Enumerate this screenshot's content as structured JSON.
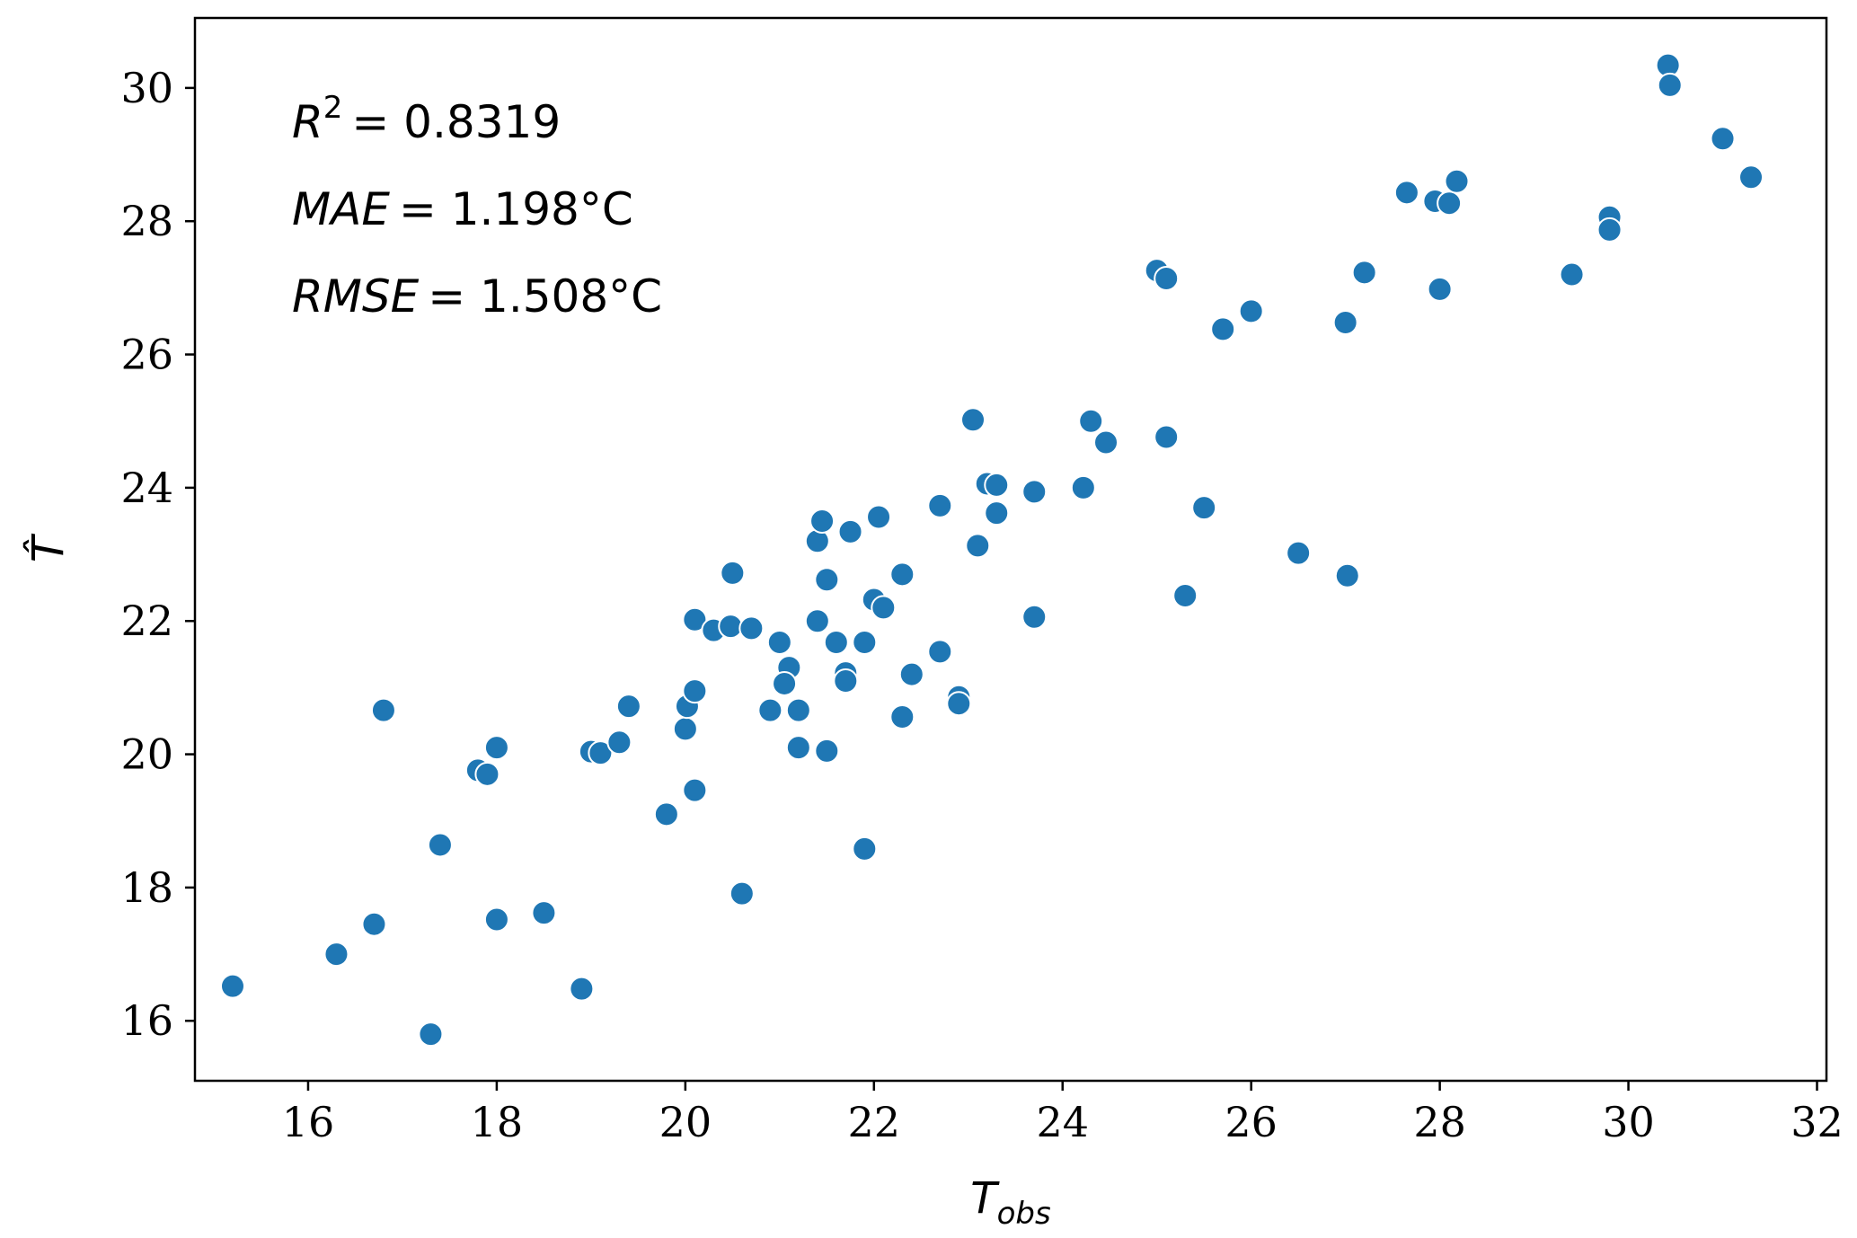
{
  "chart_data": {
    "type": "scatter",
    "xlabel": {
      "base": "T",
      "sub": "obs"
    },
    "ylabel": "T̂",
    "xlim": [
      14.8,
      32.1
    ],
    "ylim": [
      15.1,
      31.05
    ],
    "xticks": [
      16,
      18,
      20,
      22,
      24,
      26,
      28,
      30,
      32
    ],
    "yticks": [
      16,
      18,
      20,
      22,
      24,
      26,
      28,
      30
    ],
    "marker_color": "#1f77b4",
    "annotations": [
      {
        "label": "R",
        "sup": "2",
        "value": "= 0.8319"
      },
      {
        "label": "MAE",
        "value": "= 1.198°C"
      },
      {
        "label": "RMSE",
        "value": "= 1.508°C"
      }
    ],
    "points": [
      {
        "x": 15.2,
        "y": 16.52
      },
      {
        "x": 16.3,
        "y": 17.0
      },
      {
        "x": 16.7,
        "y": 17.45
      },
      {
        "x": 16.8,
        "y": 20.66
      },
      {
        "x": 17.3,
        "y": 15.8
      },
      {
        "x": 17.4,
        "y": 18.64
      },
      {
        "x": 17.8,
        "y": 19.76
      },
      {
        "x": 17.9,
        "y": 19.7
      },
      {
        "x": 18.0,
        "y": 20.1
      },
      {
        "x": 18.0,
        "y": 17.52
      },
      {
        "x": 18.5,
        "y": 17.62
      },
      {
        "x": 18.9,
        "y": 16.48
      },
      {
        "x": 19.0,
        "y": 20.04
      },
      {
        "x": 19.1,
        "y": 20.02
      },
      {
        "x": 19.3,
        "y": 20.18
      },
      {
        "x": 19.4,
        "y": 20.72
      },
      {
        "x": 19.8,
        "y": 19.1
      },
      {
        "x": 20.0,
        "y": 20.38
      },
      {
        "x": 20.02,
        "y": 20.72
      },
      {
        "x": 20.1,
        "y": 20.95
      },
      {
        "x": 20.1,
        "y": 19.46
      },
      {
        "x": 20.1,
        "y": 22.02
      },
      {
        "x": 20.3,
        "y": 21.86
      },
      {
        "x": 20.48,
        "y": 21.92
      },
      {
        "x": 20.5,
        "y": 22.72
      },
      {
        "x": 20.6,
        "y": 17.91
      },
      {
        "x": 20.7,
        "y": 21.89
      },
      {
        "x": 20.9,
        "y": 20.66
      },
      {
        "x": 21.0,
        "y": 21.68
      },
      {
        "x": 21.1,
        "y": 21.3
      },
      {
        "x": 21.05,
        "y": 21.06
      },
      {
        "x": 21.2,
        "y": 20.66
      },
      {
        "x": 21.2,
        "y": 20.1
      },
      {
        "x": 21.4,
        "y": 22.0
      },
      {
        "x": 21.4,
        "y": 23.2
      },
      {
        "x": 21.45,
        "y": 23.5
      },
      {
        "x": 21.5,
        "y": 22.62
      },
      {
        "x": 21.5,
        "y": 20.05
      },
      {
        "x": 21.6,
        "y": 21.68
      },
      {
        "x": 21.7,
        "y": 21.22
      },
      {
        "x": 21.7,
        "y": 21.1
      },
      {
        "x": 21.75,
        "y": 23.34
      },
      {
        "x": 21.9,
        "y": 21.68
      },
      {
        "x": 21.9,
        "y": 18.58
      },
      {
        "x": 22.0,
        "y": 22.32
      },
      {
        "x": 22.05,
        "y": 23.56
      },
      {
        "x": 22.1,
        "y": 22.2
      },
      {
        "x": 22.3,
        "y": 22.7
      },
      {
        "x": 22.3,
        "y": 20.56
      },
      {
        "x": 22.4,
        "y": 21.2
      },
      {
        "x": 22.7,
        "y": 23.73
      },
      {
        "x": 22.7,
        "y": 21.54
      },
      {
        "x": 22.9,
        "y": 20.86
      },
      {
        "x": 22.9,
        "y": 20.76
      },
      {
        "x": 23.05,
        "y": 25.02
      },
      {
        "x": 23.1,
        "y": 23.13
      },
      {
        "x": 23.2,
        "y": 24.06
      },
      {
        "x": 23.3,
        "y": 24.04
      },
      {
        "x": 23.3,
        "y": 23.62
      },
      {
        "x": 23.7,
        "y": 23.94
      },
      {
        "x": 23.7,
        "y": 22.06
      },
      {
        "x": 24.22,
        "y": 24.0
      },
      {
        "x": 24.3,
        "y": 25.0
      },
      {
        "x": 24.46,
        "y": 24.68
      },
      {
        "x": 25.0,
        "y": 27.26
      },
      {
        "x": 25.1,
        "y": 27.14
      },
      {
        "x": 25.1,
        "y": 24.76
      },
      {
        "x": 25.3,
        "y": 22.38
      },
      {
        "x": 25.5,
        "y": 23.7
      },
      {
        "x": 25.7,
        "y": 26.38
      },
      {
        "x": 26.0,
        "y": 26.65
      },
      {
        "x": 26.5,
        "y": 23.02
      },
      {
        "x": 27.0,
        "y": 26.48
      },
      {
        "x": 27.02,
        "y": 22.68
      },
      {
        "x": 27.2,
        "y": 27.23
      },
      {
        "x": 27.65,
        "y": 28.43
      },
      {
        "x": 27.95,
        "y": 28.3
      },
      {
        "x": 28.0,
        "y": 26.98
      },
      {
        "x": 28.1,
        "y": 28.27
      },
      {
        "x": 28.18,
        "y": 28.6
      },
      {
        "x": 29.4,
        "y": 27.2
      },
      {
        "x": 29.8,
        "y": 28.06
      },
      {
        "x": 29.8,
        "y": 27.87
      },
      {
        "x": 30.42,
        "y": 30.34
      },
      {
        "x": 30.44,
        "y": 30.04
      },
      {
        "x": 31.0,
        "y": 29.24
      },
      {
        "x": 31.3,
        "y": 28.66
      }
    ]
  }
}
